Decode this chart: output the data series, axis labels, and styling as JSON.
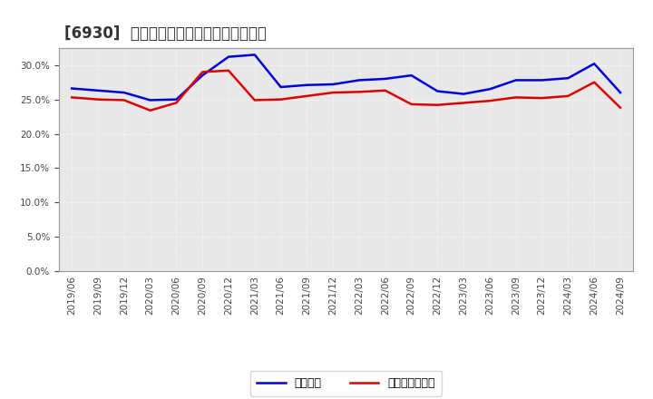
{
  "title": "[6930]  固定比率、固定長期適合率の推移",
  "background_color": "#ffffff",
  "plot_bg_color": "#e8e8e8",
  "grid_color": "#ffffff",
  "x_labels": [
    "2019/06",
    "2019/09",
    "2019/12",
    "2020/03",
    "2020/06",
    "2020/09",
    "2020/12",
    "2021/03",
    "2021/06",
    "2021/09",
    "2021/12",
    "2022/03",
    "2022/06",
    "2022/09",
    "2022/12",
    "2023/03",
    "2023/06",
    "2023/09",
    "2023/12",
    "2024/03",
    "2024/06",
    "2024/09"
  ],
  "fixed_ratio": [
    26.6,
    26.3,
    26.0,
    24.9,
    25.0,
    28.5,
    31.2,
    31.5,
    26.8,
    27.1,
    27.2,
    27.8,
    28.0,
    28.5,
    26.2,
    25.8,
    26.5,
    27.8,
    27.8,
    28.1,
    30.2,
    26.0
  ],
  "fixed_lt_ratio": [
    25.3,
    25.0,
    24.9,
    23.4,
    24.5,
    29.0,
    29.2,
    24.9,
    25.0,
    25.5,
    26.0,
    26.1,
    26.3,
    24.3,
    24.2,
    24.5,
    24.8,
    25.3,
    25.2,
    25.5,
    27.5,
    23.8
  ],
  "line1_color": "#0000dd",
  "line2_color": "#dd0000",
  "line_width": 1.8,
  "ylim": [
    0.0,
    32.5
  ],
  "yticks": [
    0.0,
    5.0,
    10.0,
    15.0,
    20.0,
    25.0,
    30.0
  ],
  "legend1": "固定比率",
  "legend2": "固定長期適合率",
  "title_fontsize": 12,
  "tick_fontsize": 7.5,
  "legend_fontsize": 9
}
